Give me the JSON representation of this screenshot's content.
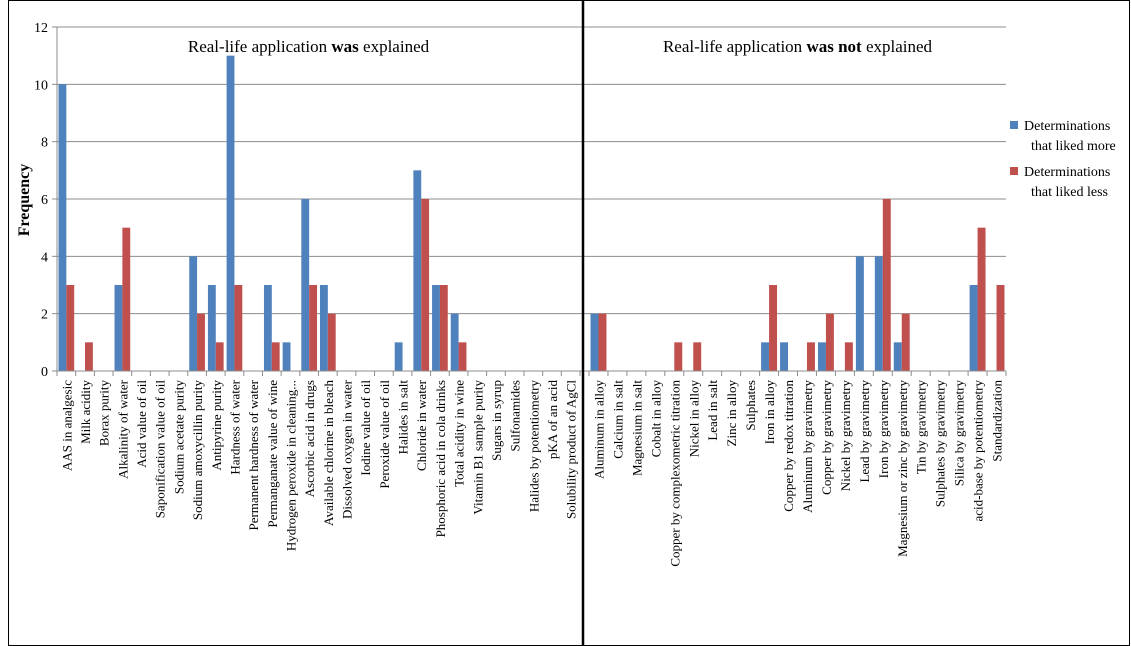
{
  "chart_data": {
    "type": "bar",
    "ylabel": "Frequency",
    "ylim": [
      0,
      12
    ],
    "yticks": [
      0,
      2,
      4,
      6,
      8,
      10,
      12
    ],
    "grid": true,
    "legend_position": "right",
    "colors": {
      "liked_more": "#4f81bd",
      "liked_less": "#c0504d"
    },
    "series_names": [
      "Determinations that liked more",
      "Determinations that liked less"
    ],
    "legend": [
      {
        "key": "liked_more",
        "lines": [
          "Determinations",
          "that liked more"
        ]
      },
      {
        "key": "liked_less",
        "lines": [
          "Determinations",
          "that liked less"
        ]
      }
    ],
    "panels": [
      {
        "title_parts": [
          {
            "text": "Real-life application ",
            "bold": false
          },
          {
            "text": "was",
            "bold": true
          },
          {
            "text": " explained",
            "bold": false
          }
        ],
        "categories": [
          "AAS in analgesic",
          "Milk acidity",
          "Borax purity",
          "Alkalinity of water",
          "Acid value of oil",
          "Saponification value of oil",
          "Sodium acetate purity",
          "Sodium amoxycillin purity",
          "Antipyrine purity",
          "Hardness of water",
          "Permanent hardness of water",
          "Permanganate value of wine",
          "Hydrogen peroxide in cleaning...",
          "Ascorbic acid in drugs",
          "Available chlorine in bleach",
          "Dissolved oxygen in water",
          "Iodine value of oil",
          "Peroxide value of oil",
          "Halides in salt",
          "Chloride in water",
          "Phosphoric acid in cola drinks",
          "Total acidity in wine",
          "Vitamin B1 sample purity",
          "Sugars in syrup",
          "Sulfonamides",
          "Halides by potentiometry",
          "pKA of an acid",
          "Solubility product of AgCl"
        ],
        "liked_more": [
          10,
          0,
          0,
          3,
          0,
          0,
          0,
          4,
          3,
          11,
          0,
          3,
          1,
          6,
          3,
          0,
          0,
          0,
          1,
          7,
          3,
          2,
          0,
          0,
          0,
          0,
          0,
          0
        ],
        "liked_less": [
          3,
          1,
          0,
          5,
          0,
          0,
          0,
          2,
          1,
          3,
          0,
          1,
          0,
          3,
          2,
          0,
          0,
          0,
          0,
          6,
          3,
          1,
          0,
          0,
          0,
          0,
          0,
          0
        ]
      },
      {
        "title_parts": [
          {
            "text": "Real-life application ",
            "bold": false
          },
          {
            "text": "was not",
            "bold": true
          },
          {
            "text": " explained",
            "bold": false
          }
        ],
        "categories": [
          "Aluminum in alloy",
          "Calcium in salt",
          "Magnesium in salt",
          "Cobalt in alloy",
          "Copper by complexometric titration",
          "Nickel in alloy",
          "Lead in salt",
          "Zinc in alloy",
          "Sulphates",
          "Iron in alloy",
          "Copper by redox titration",
          "Aluminum by gravimetry",
          "Copper by gravimetry",
          "Nickel by gravimetry",
          "Lead by gravimetry",
          "Iron by gravimetry",
          "Magnesium or zinc by gravimetry",
          "Tin by gravimetry",
          "Sulphates by gravimetry",
          "Silica by gravimetry",
          "acid-base by potentiometry",
          "Standardization"
        ],
        "liked_more": [
          2,
          0,
          0,
          0,
          0,
          0,
          0,
          0,
          0,
          1,
          1,
          0,
          1,
          0,
          4,
          4,
          1,
          0,
          0,
          0,
          3,
          0
        ],
        "liked_less": [
          2,
          0,
          0,
          0,
          1,
          1,
          0,
          0,
          0,
          3,
          0,
          1,
          2,
          1,
          0,
          6,
          2,
          0,
          0,
          0,
          5,
          3
        ]
      }
    ]
  }
}
